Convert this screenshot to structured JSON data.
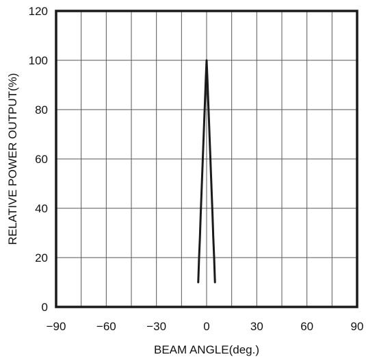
{
  "chart_data": {
    "type": "line",
    "title": "",
    "xlabel": "BEAM ANGLE(deg.)",
    "ylabel": "RELATIVE POWER OUTPUT(%)",
    "xlim": [
      -90,
      90
    ],
    "ylim": [
      0,
      120
    ],
    "x_ticks": [
      -90,
      -60,
      -30,
      0,
      30,
      60,
      90
    ],
    "x_tick_labels": [
      "−90",
      "−60",
      "−30",
      "0",
      "30",
      "60",
      "90"
    ],
    "y_ticks": [
      0,
      20,
      40,
      60,
      80,
      100,
      120
    ],
    "y_tick_labels": [
      "0",
      "20",
      "40",
      "60",
      "80",
      "100",
      "120"
    ],
    "x_grid_step": 15,
    "y_grid_step": 20,
    "grid": true,
    "legend": "none",
    "colors": {
      "line": "#1a1a1a",
      "grid": "#555555",
      "frame": "#1a1a1a"
    },
    "series": [
      {
        "x": [
          -5,
          -4.5,
          -4,
          -3.5,
          -3,
          -2.5,
          -2,
          -1.5,
          -1,
          -0.5,
          0,
          0.5,
          1,
          1.5,
          2,
          2.5,
          3,
          3.5,
          4,
          4.5,
          5
        ],
        "values": [
          10,
          20,
          28,
          38,
          47,
          56,
          65,
          74,
          83,
          92,
          100,
          92,
          83,
          74,
          65,
          56,
          47,
          38,
          28,
          20,
          10
        ]
      }
    ]
  }
}
